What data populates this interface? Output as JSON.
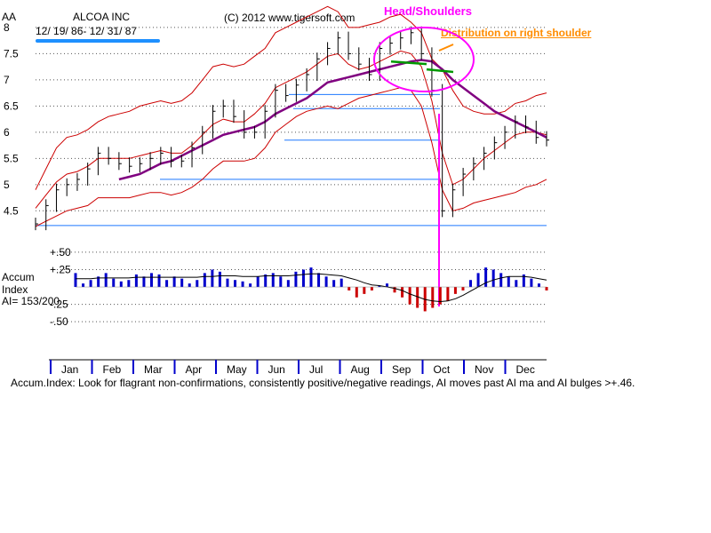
{
  "header": {
    "symbol": "AA",
    "company": "ALCOA INC",
    "date_range": "12/ 19/ 86- 12/ 31/ 87",
    "copyright": "(C) 2012 www.tigersoft.com"
  },
  "annotations": {
    "head_shoulders": "Head/Shoulders",
    "distribution": "Distribution on right shoulder"
  },
  "indicator": {
    "title": "Accum",
    "subtitle": "Index",
    "ai_value": "AI= 153/200"
  },
  "footer": "Accum.Index: Look for flagrant non-confirmations, consistently positive/negative readings, AI moves past AI ma and AI bulges >+.46.",
  "colors": {
    "bands": "#cc0000",
    "ma": "#800080",
    "price": "#000000",
    "support": "#1e78ff",
    "neckline": "#009900",
    "annotation": "#ff00ff",
    "distribution": "#ff8c00",
    "ai_positive": "#0000cc",
    "ai_negative": "#cc0000"
  },
  "chart_data": {
    "type": "line",
    "title": "ALCOA INC",
    "months": [
      "Jan",
      "Feb",
      "Mar",
      "Apr",
      "May",
      "Jun",
      "Jul",
      "Aug",
      "Sep",
      "Oct",
      "Nov",
      "Dec"
    ],
    "price": {
      "ylim": [
        4.2,
        8.1
      ],
      "ticks": [
        "4.5",
        "5",
        "5.5",
        "6",
        "6.5",
        "7",
        "7.5",
        "8"
      ],
      "tick_values": [
        4.5,
        5,
        5.5,
        6,
        6.5,
        7,
        7.5,
        8
      ],
      "closes": [
        4.25,
        4.6,
        4.9,
        5.0,
        5.1,
        5.3,
        5.6,
        5.5,
        5.4,
        5.35,
        5.4,
        5.5,
        5.6,
        5.45,
        5.45,
        5.7,
        6.0,
        6.4,
        6.5,
        6.3,
        6.0,
        6.0,
        6.4,
        6.8,
        6.7,
        6.9,
        7.1,
        7.4,
        7.6,
        7.8,
        7.5,
        7.3,
        7.1,
        7.6,
        7.7,
        7.8,
        7.9,
        7.5,
        6.8,
        4.5,
        4.9,
        5.2,
        5.4,
        5.6,
        5.8,
        6.0,
        6.2,
        6.1,
        5.9,
        5.85
      ],
      "upper_band": [
        4.9,
        5.3,
        5.7,
        5.9,
        5.95,
        6.05,
        6.2,
        6.3,
        6.35,
        6.4,
        6.5,
        6.55,
        6.6,
        6.55,
        6.6,
        6.75,
        7.0,
        7.25,
        7.3,
        7.25,
        7.3,
        7.45,
        7.6,
        7.9,
        8.0,
        8.1,
        8.2,
        8.3,
        8.4,
        8.3,
        8.0,
        8.0,
        8.05,
        8.1,
        8.2,
        8.25,
        8.1,
        7.9,
        7.4,
        7.2,
        6.8,
        6.5,
        6.4,
        6.35,
        6.35,
        6.4,
        6.55,
        6.6,
        6.7,
        6.75
      ],
      "mid_band": [
        4.55,
        4.8,
        5.05,
        5.2,
        5.25,
        5.35,
        5.5,
        5.5,
        5.5,
        5.5,
        5.55,
        5.6,
        5.65,
        5.6,
        5.6,
        5.75,
        5.95,
        6.15,
        6.25,
        6.2,
        6.2,
        6.35,
        6.55,
        6.85,
        6.95,
        7.05,
        7.15,
        7.3,
        7.45,
        7.5,
        7.3,
        7.2,
        7.25,
        7.35,
        7.45,
        7.55,
        7.5,
        7.25,
        6.6,
        5.6,
        5.0,
        5.1,
        5.3,
        5.5,
        5.65,
        5.8,
        5.95,
        6.0,
        6.0,
        5.95
      ],
      "lower_band": [
        4.2,
        4.3,
        4.4,
        4.5,
        4.55,
        4.6,
        4.75,
        4.75,
        4.75,
        4.75,
        4.8,
        4.85,
        4.85,
        4.8,
        4.85,
        4.95,
        5.1,
        5.3,
        5.45,
        5.45,
        5.45,
        5.5,
        5.7,
        6.0,
        6.15,
        6.3,
        6.4,
        6.45,
        6.5,
        6.45,
        6.55,
        6.65,
        6.7,
        6.75,
        6.8,
        6.85,
        6.8,
        6.5,
        5.8,
        4.9,
        4.5,
        4.55,
        4.65,
        4.7,
        4.75,
        4.8,
        4.85,
        4.95,
        5.0,
        5.1
      ],
      "ma": [
        null,
        null,
        null,
        null,
        null,
        null,
        null,
        null,
        5.1,
        5.15,
        5.2,
        5.3,
        5.4,
        5.45,
        5.55,
        5.65,
        5.75,
        5.85,
        5.95,
        6.0,
        6.05,
        6.1,
        6.2,
        6.35,
        6.45,
        6.55,
        6.65,
        6.8,
        6.95,
        7.0,
        7.05,
        7.1,
        7.15,
        7.2,
        7.25,
        7.3,
        7.35,
        7.38,
        7.35,
        7.2,
        7.0,
        6.85,
        6.7,
        6.55,
        6.4,
        6.3,
        6.2,
        6.1,
        6.0,
        5.9
      ],
      "support_levels": [
        4.22,
        5.1,
        5.85,
        6.45,
        6.72
      ],
      "neckline": [
        [
          7.35,
          7.3
        ],
        [
          7.2,
          7.15
        ]
      ]
    },
    "accum": {
      "ylim": [
        -0.6,
        0.55
      ],
      "ticks": [
        "+.50",
        "+.25",
        "-.25",
        "-.50"
      ],
      "tick_values": [
        0.5,
        0.25,
        -0.25,
        -0.5
      ],
      "values": [
        0.2,
        0.05,
        0.1,
        0.15,
        0.2,
        0.12,
        0.08,
        0.1,
        0.18,
        0.15,
        0.2,
        0.18,
        0.1,
        0.15,
        0.12,
        0.05,
        0.1,
        0.2,
        0.25,
        0.22,
        0.12,
        0.1,
        0.08,
        0.05,
        0.15,
        0.18,
        0.2,
        0.15,
        0.1,
        0.22,
        0.25,
        0.28,
        0.2,
        0.15,
        0.1,
        0.12,
        -0.05,
        -0.15,
        -0.1,
        -0.05,
        0.02,
        0.05,
        -0.08,
        -0.15,
        -0.25,
        -0.3,
        -0.35,
        -0.3,
        -0.25,
        -0.2,
        -0.1,
        -0.05,
        0.1,
        0.2,
        0.28,
        0.25,
        0.2,
        0.15,
        0.1,
        0.18,
        0.12,
        0.05,
        -0.05
      ],
      "ma": [
        0.12,
        0.12,
        0.12,
        0.13,
        0.13,
        0.13,
        0.13,
        0.13,
        0.14,
        0.14,
        0.14,
        0.14,
        0.14,
        0.14,
        0.14,
        0.14,
        0.14,
        0.15,
        0.15,
        0.16,
        0.16,
        0.16,
        0.15,
        0.15,
        0.15,
        0.16,
        0.16,
        0.16,
        0.16,
        0.17,
        0.18,
        0.19,
        0.19,
        0.18,
        0.17,
        0.16,
        0.13,
        0.1,
        0.06,
        0.03,
        0.02,
        0.0,
        -0.02,
        -0.05,
        -0.1,
        -0.14,
        -0.18,
        -0.2,
        -0.21,
        -0.2,
        -0.17,
        -0.12,
        -0.06,
        0.0,
        0.06,
        0.1,
        0.13,
        0.15,
        0.15,
        0.15,
        0.14,
        0.12,
        0.1
      ]
    }
  }
}
